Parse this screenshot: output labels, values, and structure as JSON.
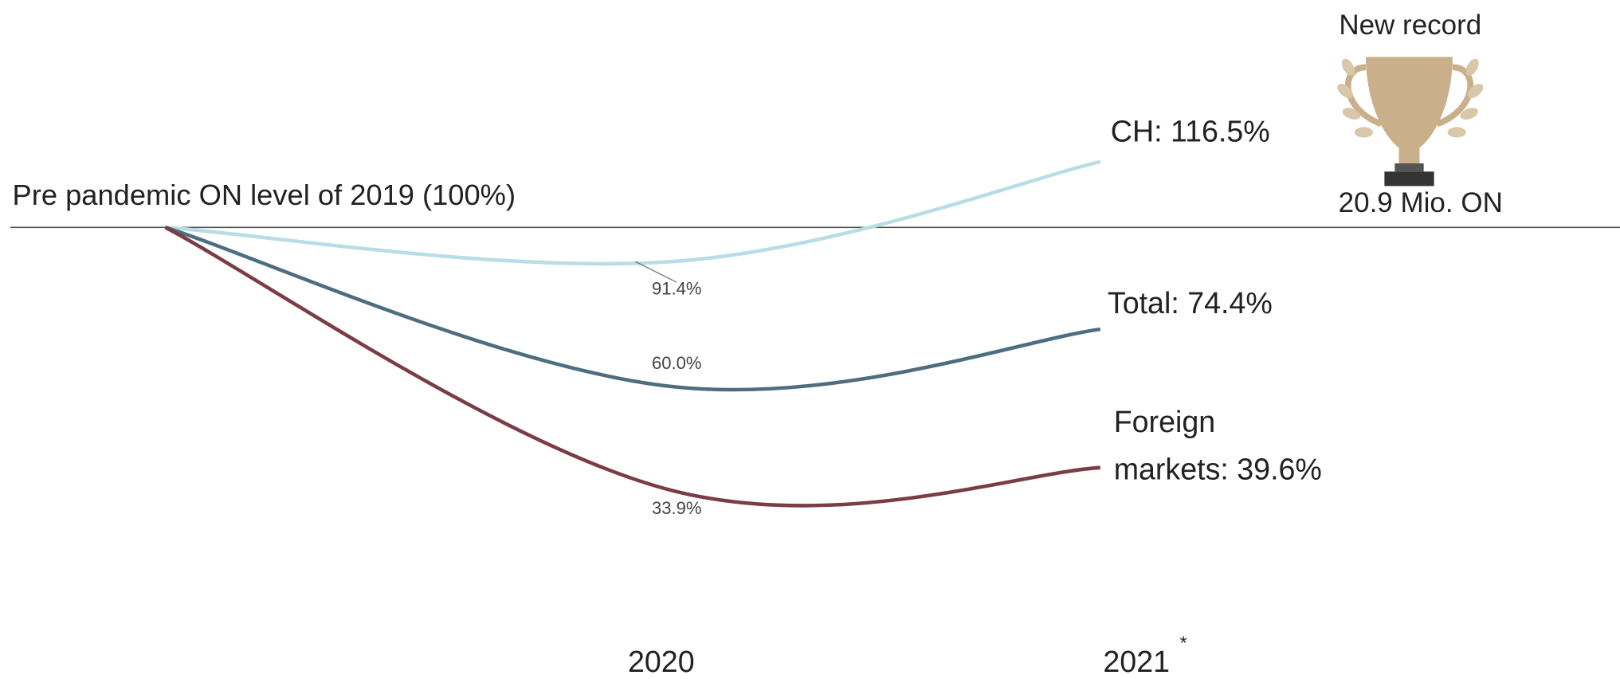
{
  "chart_data": {
    "type": "line",
    "baseline_label": "Pre pandemic ON level of 2019 (100%)",
    "baseline": 100,
    "categories": [
      null,
      "2020",
      "2021"
    ],
    "footnote_marker": "*",
    "ylim": [
      0,
      150
    ],
    "series": [
      {
        "name": "CH",
        "color": "#b9dde6",
        "values": [
          100,
          91.4,
          116.5
        ],
        "value_labels": [
          null,
          "91.4%",
          null
        ],
        "label_lines": [
          "CH: 116.5%"
        ]
      },
      {
        "name": "Total",
        "color": "#4e6e80",
        "values": [
          100,
          60.0,
          74.4
        ],
        "value_labels": [
          null,
          "60.0%",
          null
        ],
        "label_lines": [
          "Total: 74.4%"
        ]
      },
      {
        "name": "Foreign markets",
        "color": "#7a3d46",
        "values": [
          100,
          33.9,
          39.6
        ],
        "value_labels": [
          null,
          "33.9%",
          null
        ],
        "label_lines": [
          "Foreign",
          "markets: 39.6%"
        ]
      }
    ],
    "record": {
      "title": "New record",
      "value_text": "20.9 Mio. ON"
    }
  }
}
